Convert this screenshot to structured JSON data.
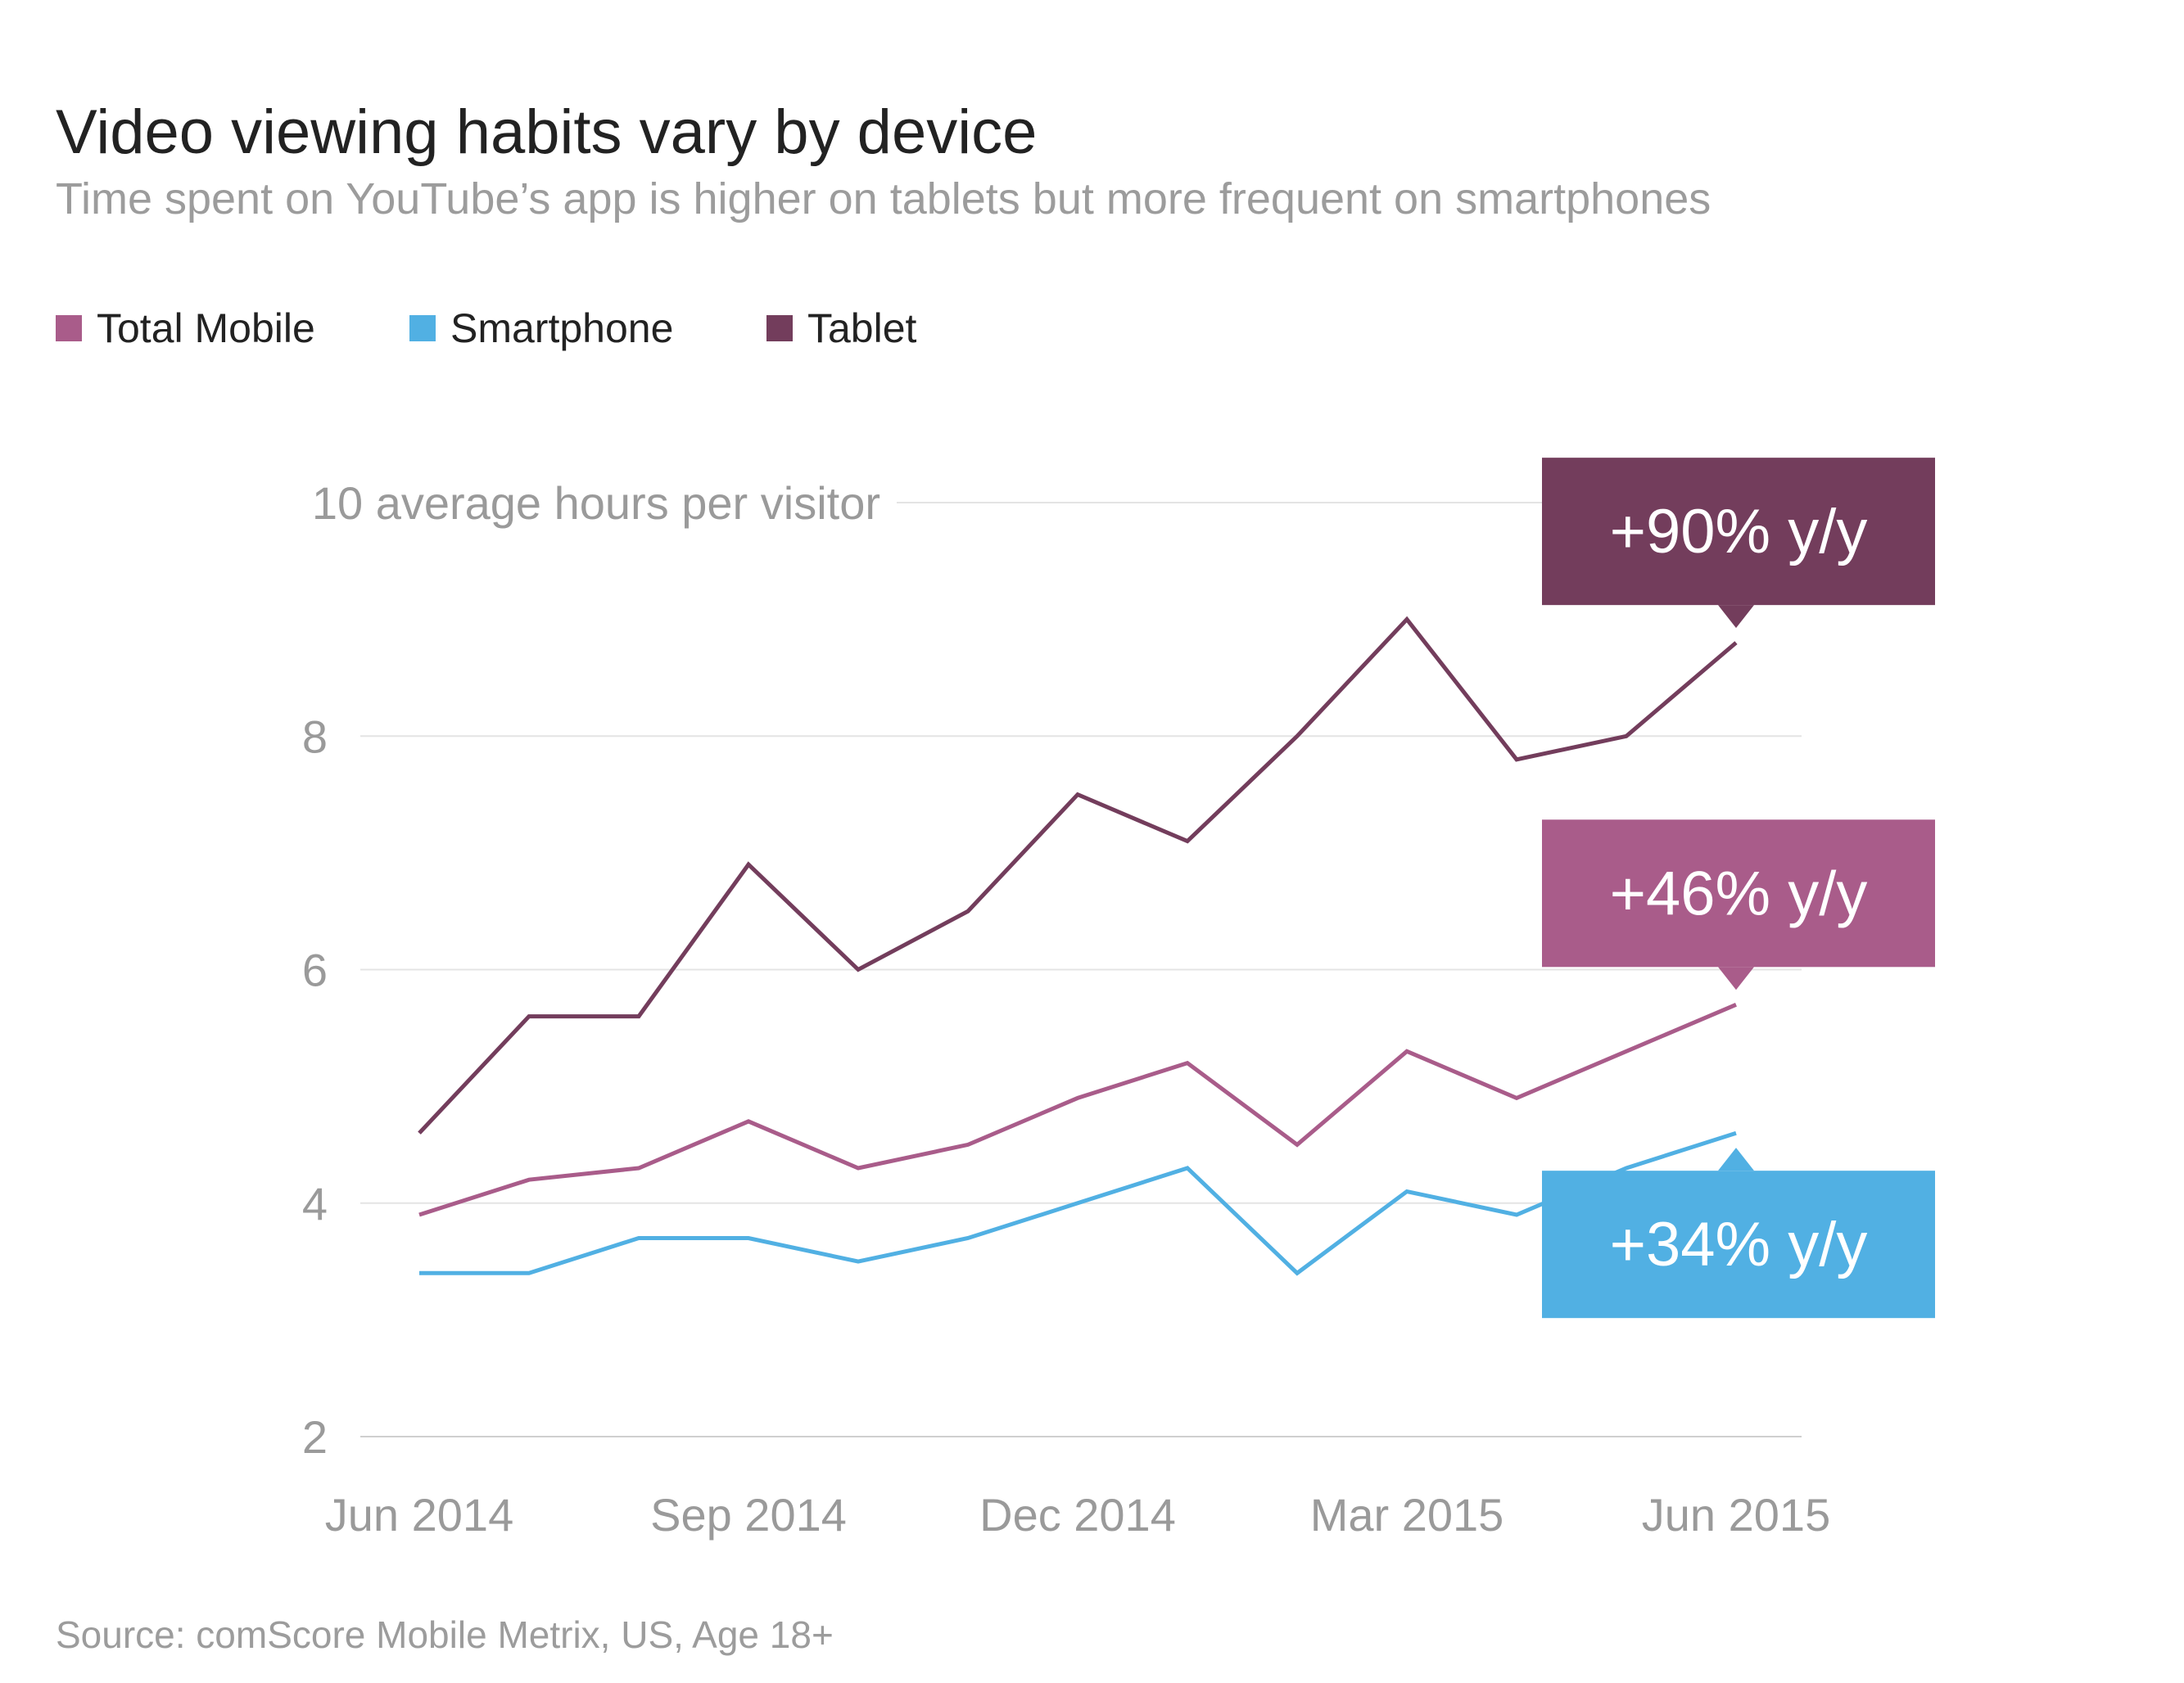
{
  "title": "Video viewing habits vary by device",
  "subtitle": "Time spent on YouTube’s app is higher on tablets but more frequent on smartphones",
  "source": "Source: comScore Mobile Metrix, US, Age 18+",
  "colors": {
    "total_mobile": "#a95c8a",
    "smartphone": "#51b0e3",
    "tablet": "#733d5c",
    "grid": "#e4e4e4",
    "tick_text": "#9a9a9a"
  },
  "legend": [
    {
      "label": "Total Mobile",
      "color": "#a95c8a"
    },
    {
      "label": "Smartphone",
      "color": "#51b0e3"
    },
    {
      "label": "Tablet",
      "color": "#733d5c"
    }
  ],
  "chart_data": {
    "type": "line",
    "title": "Video viewing habits vary by device",
    "subtitle": "Time spent on YouTube’s app is higher on tablets but more frequent on smartphones",
    "x": [
      "Jun 2014",
      "Jul 2014",
      "Aug 2014",
      "Sep 2014",
      "Oct 2014",
      "Nov 2014",
      "Dec 2014",
      "Jan 2015",
      "Feb 2015",
      "Mar 2015",
      "Apr 2015",
      "May 2015",
      "Jun 2015"
    ],
    "x_tick_labels": [
      "Jun 2014",
      "Sep 2014",
      "Dec 2014",
      "Mar 2015",
      "Jun 2015"
    ],
    "y_ticks": [
      2,
      4,
      6,
      8,
      10
    ],
    "y_tick_labels": [
      "2",
      "4",
      "6",
      "8",
      "10 average hours per visitor"
    ],
    "ylim": [
      2,
      10
    ],
    "grid": true,
    "legend_position": "top-left",
    "series": [
      {
        "name": "Tablet",
        "color": "#733d5c",
        "values": [
          4.6,
          5.6,
          5.6,
          6.9,
          6.0,
          6.5,
          7.5,
          7.1,
          8.0,
          9.0,
          7.8,
          8.0,
          8.8
        ]
      },
      {
        "name": "Total Mobile",
        "color": "#a95c8a",
        "values": [
          3.9,
          4.2,
          4.3,
          4.7,
          4.3,
          4.5,
          4.9,
          5.2,
          4.5,
          5.3,
          4.9,
          5.3,
          5.7
        ]
      },
      {
        "name": "Smartphone",
        "color": "#51b0e3",
        "values": [
          3.4,
          3.4,
          3.7,
          3.7,
          3.5,
          3.7,
          4.0,
          4.3,
          3.4,
          4.1,
          3.9,
          4.3,
          4.6
        ]
      }
    ],
    "annotations": [
      {
        "series": "Tablet",
        "text": "+90% y/y",
        "color": "#733d5c",
        "pointer": "down"
      },
      {
        "series": "Total Mobile",
        "text": "+46% y/y",
        "color": "#a95c8a",
        "pointer": "down"
      },
      {
        "series": "Smartphone",
        "text": "+34% y/y",
        "color": "#51b0e3",
        "pointer": "up"
      }
    ]
  }
}
